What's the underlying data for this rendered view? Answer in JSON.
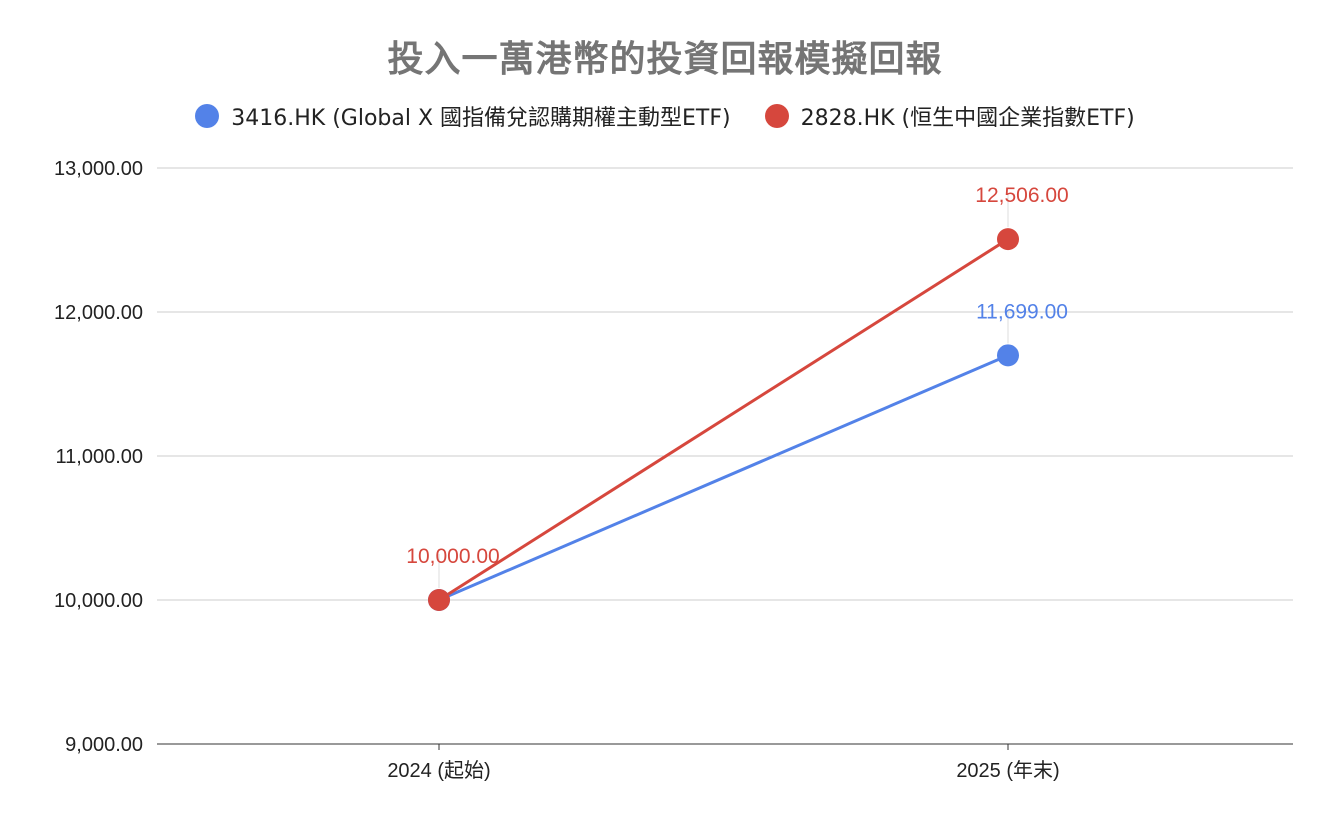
{
  "chart_data": {
    "type": "line",
    "title": "投入一萬港幣的投資回報模擬回報",
    "categories": [
      "2024 (起始)",
      "2025 (年末)"
    ],
    "series": [
      {
        "name": "3416.HK (Global X 國指備兌認購期權主動型ETF)",
        "color": "#5382e8",
        "values": [
          10000,
          11699
        ],
        "data_labels": [
          "",
          "11,699.00"
        ]
      },
      {
        "name": "2828.HK (恒生中國企業指數ETF)",
        "color": "#d6473d",
        "values": [
          10000,
          12506
        ],
        "data_labels": [
          "10,000.00",
          "12,506.00"
        ]
      }
    ],
    "y_ticks": [
      9000,
      10000,
      11000,
      12000,
      13000
    ],
    "y_tick_labels": [
      "9,000.00",
      "10,000.00",
      "11,000.00",
      "12,000.00",
      "13,000.00"
    ],
    "ylim": [
      9000,
      13000
    ],
    "xlabel": "",
    "ylabel": "",
    "grid": true,
    "legend_position": "top"
  }
}
